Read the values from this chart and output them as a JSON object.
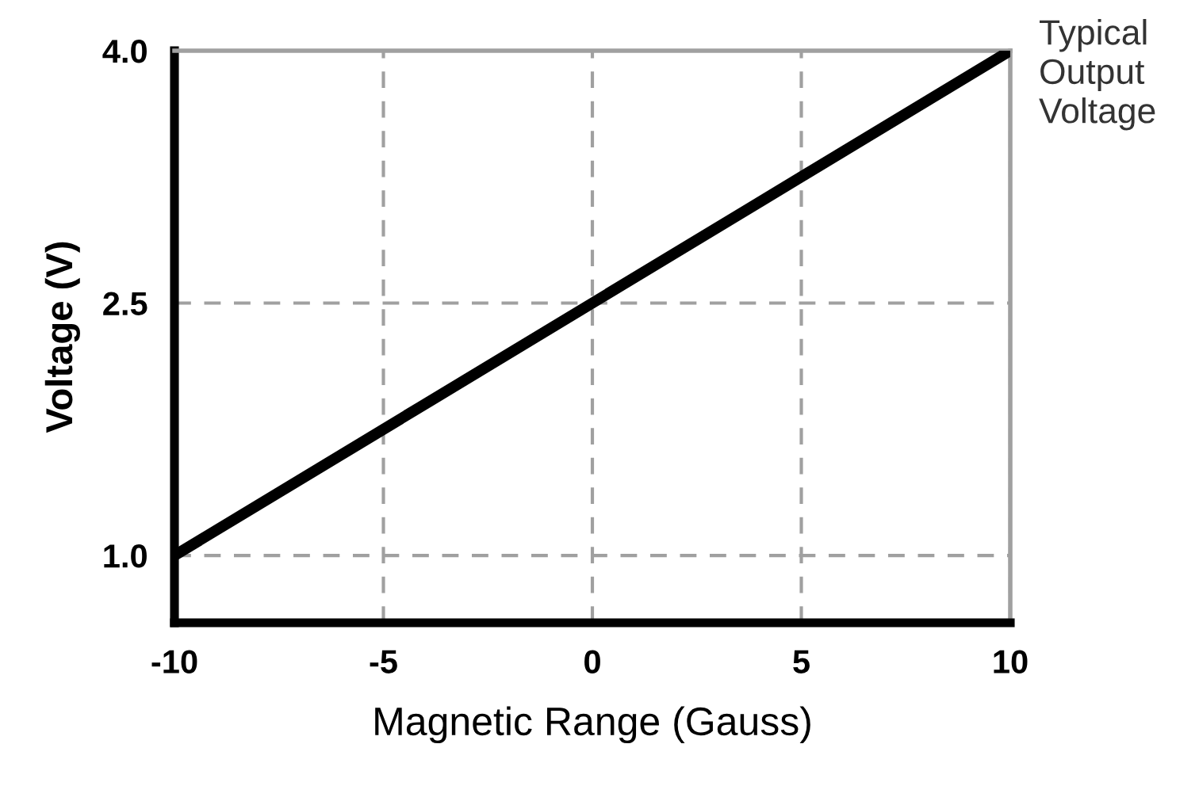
{
  "chart_data": {
    "type": "line",
    "xlabel": "Magnetic Range (Gauss)",
    "ylabel": "Voltage (V)",
    "x": [
      -10,
      10
    ],
    "series": [
      {
        "color": "#000000",
        "values": [
          1.0,
          4.0
        ]
      }
    ],
    "xlim": [
      -10,
      10
    ],
    "xticks": [
      -10,
      -5,
      0,
      5,
      10
    ],
    "ylim": [
      0.6,
      4.0
    ],
    "yticks": [
      {
        "value": 1.0,
        "label": "1.0"
      },
      {
        "value": 2.5,
        "label": "2.5"
      },
      {
        "value": 4.0,
        "label": "4.0"
      }
    ],
    "grid": true,
    "marker": "none",
    "line_style": "solid",
    "annotations": [
      "Typical\nOutput\nVoltage"
    ]
  }
}
